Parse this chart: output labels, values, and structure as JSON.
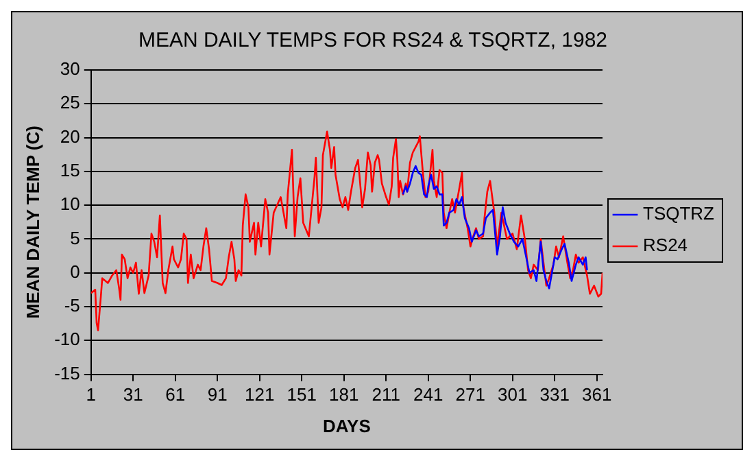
{
  "chart_data": {
    "type": "line",
    "title": "MEAN DAILY TEMPS FOR RS24 & TSQRTZ, 1982",
    "xlabel": "DAYS",
    "ylabel": "MEAN DAILY TEMP (C)",
    "xlim": [
      1,
      365
    ],
    "xticks": [
      1,
      31,
      61,
      91,
      121,
      151,
      181,
      211,
      241,
      271,
      301,
      331,
      361
    ],
    "ylim": [
      -15,
      30
    ],
    "yticks": [
      -15,
      -10,
      -5,
      0,
      5,
      10,
      15,
      20,
      25,
      30
    ],
    "grid": "y",
    "legend": "right",
    "marker": "none",
    "line_style": "solid",
    "series": [
      {
        "name": "RS24",
        "color": "#ff0000",
        "x": [
          1,
          4,
          5,
          6,
          7,
          8,
          9,
          13,
          16,
          19,
          21,
          22,
          23,
          25,
          27,
          29,
          31,
          33,
          35,
          37,
          39,
          42,
          44,
          46,
          48,
          50,
          52,
          54,
          56,
          59,
          60,
          63,
          65,
          67,
          69,
          70,
          72,
          74,
          77,
          79,
          81,
          83,
          85,
          87,
          91,
          94,
          97,
          99,
          101,
          103,
          104,
          106,
          108,
          109,
          111,
          113,
          114,
          117,
          118,
          120,
          122,
          125,
          127,
          128,
          131,
          136,
          140,
          141,
          144,
          146,
          148,
          150,
          152,
          156,
          160,
          161,
          163,
          165,
          166,
          169,
          171,
          172,
          174,
          175,
          178,
          180,
          182,
          184,
          186,
          189,
          191,
          192,
          194,
          196,
          198,
          200,
          201,
          203,
          205,
          206,
          208,
          211,
          213,
          215,
          216,
          218,
          219,
          220,
          221,
          223,
          225,
          226,
          228,
          230,
          232,
          234,
          235,
          237,
          239,
          241,
          242,
          244,
          245,
          247,
          249,
          251,
          252,
          254,
          256,
          258,
          260,
          261,
          263,
          265,
          266,
          269,
          271,
          273,
          275,
          277,
          280,
          281,
          283,
          285,
          286,
          288,
          290,
          293,
          297,
          301,
          304,
          307,
          310,
          312,
          314,
          316,
          319,
          321,
          323,
          325,
          327,
          330,
          332,
          334,
          337,
          340,
          342,
          344,
          346,
          348,
          351,
          354,
          356,
          359,
          362,
          364,
          365
        ],
        "values": [
          -3,
          -2.5,
          -7.4,
          -8.5,
          -6,
          -3.5,
          -0.8,
          -1.5,
          -0.4,
          0.4,
          -2.3,
          -4,
          2.7,
          2,
          -0.8,
          0.8,
          0,
          1.5,
          -3.1,
          0.4,
          -3,
          -0.4,
          5.8,
          4.6,
          2.3,
          8.5,
          -1.5,
          -3,
          0.4,
          3.9,
          2,
          0.8,
          2,
          5.8,
          5,
          -1.5,
          2.7,
          -0.8,
          1.2,
          0.4,
          3.9,
          6.6,
          3.5,
          -1.2,
          -1.5,
          -1.8,
          -0.8,
          2.3,
          4.6,
          2,
          -1.2,
          0.4,
          -0.4,
          7,
          11.6,
          9.7,
          4.6,
          7.4,
          2.7,
          7.4,
          3.9,
          10.9,
          8.9,
          2.7,
          8.9,
          11.2,
          6.6,
          11.6,
          18.2,
          5.4,
          11.2,
          14,
          7.4,
          5.4,
          14,
          17,
          7.4,
          9.7,
          17.4,
          20.9,
          18.2,
          15.5,
          18.6,
          14.5,
          10.9,
          9.7,
          11.2,
          9.3,
          12,
          15.5,
          16.7,
          14.5,
          9.7,
          12.4,
          17.8,
          15.9,
          12,
          16.3,
          17.4,
          16.7,
          13.2,
          11.2,
          10.1,
          12.8,
          17,
          19.8,
          16.7,
          11.2,
          13.6,
          11.6,
          13.2,
          12,
          16.3,
          17.8,
          18.6,
          19.4,
          20.2,
          15.2,
          11.2,
          12,
          14,
          18.2,
          13.6,
          11.2,
          15.2,
          14.8,
          8.9,
          6.6,
          8.9,
          10.9,
          8.9,
          10.1,
          12.4,
          14.8,
          9.7,
          6.6,
          3.9,
          5.4,
          6.6,
          5,
          5.4,
          8.1,
          12,
          13.6,
          12,
          8.9,
          3.9,
          8.9,
          5,
          5.8,
          3.5,
          8.5,
          4.6,
          0.4,
          -0.8,
          1.2,
          0.4,
          5,
          1.5,
          -1.9,
          -0.8,
          1.2,
          3.9,
          2.3,
          5.4,
          1.5,
          -0.8,
          0.4,
          2.7,
          1.5,
          2.3,
          -0.4,
          -3.1,
          -1.9,
          -3.5,
          -3.1,
          0
        ]
      },
      {
        "name": "TSQTRZ",
        "color": "#0000ff",
        "x": [
          223,
          225,
          226,
          228,
          230,
          232,
          234,
          236,
          238,
          240,
          241,
          243,
          245,
          247,
          249,
          251,
          252,
          254,
          256,
          259,
          261,
          263,
          265,
          267,
          270,
          272,
          275,
          277,
          280,
          282,
          285,
          287,
          290,
          292,
          294,
          296,
          299,
          302,
          305,
          308,
          311,
          313,
          316,
          318,
          321,
          323,
          325,
          327,
          331,
          333,
          336,
          338,
          341,
          343,
          346,
          348,
          351,
          353,
          354
        ],
        "values": [
          11.6,
          12.8,
          12,
          13.2,
          14.8,
          15.8,
          14.8,
          14.5,
          11.6,
          11.2,
          12.8,
          14.5,
          12.4,
          12.8,
          11.6,
          11.6,
          7,
          7.4,
          8.9,
          9.3,
          10.9,
          10.1,
          11.2,
          8.1,
          6.6,
          4.6,
          6.3,
          5.4,
          5.8,
          8.1,
          8.9,
          9.3,
          2.7,
          5.4,
          9.7,
          7.4,
          5.8,
          4.6,
          3.9,
          5,
          2,
          0,
          0.4,
          -1.2,
          4.6,
          0.4,
          -1.2,
          -2.3,
          2.3,
          2,
          3.5,
          4.3,
          1.5,
          -1.2,
          1.2,
          2.3,
          1.2,
          2.3,
          0.4
        ]
      }
    ]
  }
}
